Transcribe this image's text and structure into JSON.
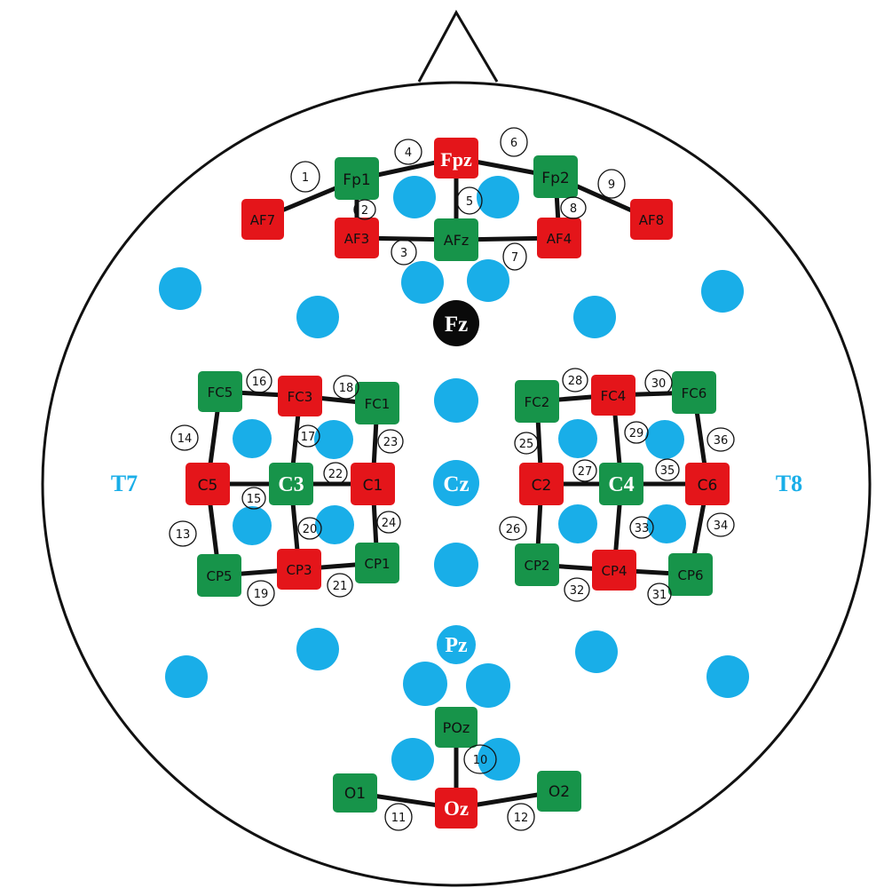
{
  "colors": {
    "optode_green": "#17944a",
    "optode_red": "#e4151a",
    "electrode_blue": "#19aee8",
    "reference_black": "#0a0a0a",
    "outline": "#111111"
  },
  "labels": {
    "Fpz": "Fpz",
    "Fz": "Fz",
    "Cz": "Cz",
    "Pz": "Pz",
    "Oz": "Oz",
    "T7": "T7",
    "T8": "T8",
    "C3": "C3",
    "C4": "C4",
    "Fp1": "Fp1",
    "Fp2": "Fp2",
    "AF7": "AF7",
    "AF3": "AF3",
    "AFz": "AFz",
    "AF4": "AF4",
    "AF8": "AF8",
    "FC5": "FC5",
    "FC3": "FC3",
    "FC1": "FC1",
    "C5": "C5",
    "C1": "C1",
    "CP5": "CP5",
    "CP3": "CP3",
    "CP1": "CP1",
    "FC2": "FC2",
    "FC4": "FC4",
    "FC6": "FC6",
    "C2": "C2",
    "C6": "C6",
    "CP2": "CP2",
    "CP4": "CP4",
    "CP6": "CP6",
    "POz": "POz",
    "O1": "O1",
    "O2": "O2"
  },
  "channels": [
    "1",
    "2",
    "3",
    "4",
    "5",
    "6",
    "7",
    "8",
    "9",
    "10",
    "11",
    "12",
    "13",
    "14",
    "15",
    "16",
    "17",
    "18",
    "19",
    "20",
    "21",
    "22",
    "23",
    "24",
    "25",
    "26",
    "27",
    "28",
    "29",
    "30",
    "31",
    "32",
    "33",
    "34",
    "35",
    "36"
  ]
}
